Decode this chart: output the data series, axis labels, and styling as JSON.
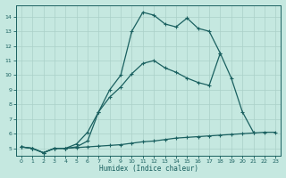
{
  "xlabel": "Humidex (Indice chaleur)",
  "background_color": "#c5e8e0",
  "grid_color": "#aad0c8",
  "line_color": "#1a6060",
  "xlim": [
    -0.5,
    23.5
  ],
  "ylim": [
    4.5,
    14.8
  ],
  "xticks": [
    0,
    1,
    2,
    3,
    4,
    5,
    6,
    7,
    8,
    9,
    10,
    11,
    12,
    13,
    14,
    15,
    16,
    17,
    18,
    19,
    20,
    21,
    22,
    23
  ],
  "yticks": [
    5,
    6,
    7,
    8,
    9,
    10,
    11,
    12,
    13,
    14
  ],
  "line1_x": [
    0,
    1,
    2,
    3,
    4,
    5,
    6,
    7,
    8,
    9,
    10,
    11,
    12,
    13,
    14,
    15,
    16,
    17,
    18,
    19,
    20,
    21,
    22,
    23
  ],
  "line1_y": [
    5.1,
    5.0,
    4.7,
    5.0,
    5.0,
    5.05,
    5.1,
    5.15,
    5.2,
    5.25,
    5.35,
    5.45,
    5.5,
    5.6,
    5.7,
    5.75,
    5.8,
    5.85,
    5.9,
    5.95,
    6.0,
    6.05,
    6.1,
    6.1
  ],
  "line2_x": [
    0,
    1,
    2,
    3,
    4,
    5,
    6,
    7,
    8,
    9,
    10,
    11,
    12,
    13,
    14,
    15,
    16,
    17,
    18,
    19,
    20,
    21,
    22,
    23
  ],
  "line2_y": [
    5.1,
    5.0,
    4.7,
    5.0,
    5.0,
    5.3,
    6.1,
    7.5,
    8.5,
    9.2,
    10.1,
    10.8,
    11.0,
    10.5,
    10.2,
    9.8,
    9.5,
    9.3,
    11.5,
    9.8,
    7.5,
    6.1,
    null,
    null
  ],
  "line3_x": [
    0,
    1,
    2,
    3,
    4,
    5,
    6,
    7,
    8,
    9,
    10,
    11,
    12,
    13,
    14,
    15,
    16,
    17,
    18,
    19,
    20,
    21,
    22,
    23
  ],
  "line3_y": [
    5.1,
    5.0,
    4.7,
    5.0,
    5.0,
    5.1,
    5.5,
    7.5,
    9.0,
    10.0,
    13.0,
    14.3,
    14.1,
    13.5,
    13.3,
    13.9,
    13.2,
    13.0,
    11.5,
    null,
    null,
    null,
    null,
    null
  ],
  "markersize": 2.5,
  "linewidth": 0.9
}
